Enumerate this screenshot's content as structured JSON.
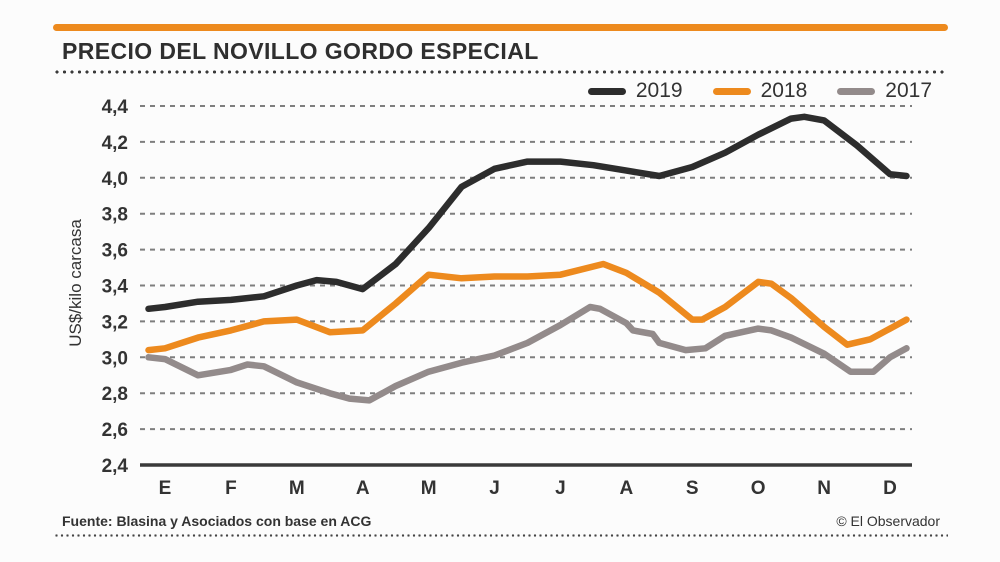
{
  "header": {
    "title": "PRECIO DEL NOVILLO GORDO ESPECIAL"
  },
  "footer": {
    "source": "Fuente: Blasina y Asociados con base en ACG",
    "credit": "© El Observador"
  },
  "colors": {
    "accent": "#ED8A1E",
    "background": "#FCFCFC",
    "title_text": "#2F2F2F"
  },
  "chart_data": {
    "type": "line",
    "title": "PRECIO DEL NOVILLO GORDO ESPECIAL",
    "ylabel": "US$/kilo carcasa",
    "xlabel": "",
    "ylim": [
      2.4,
      4.4
    ],
    "y_ticks": [
      2.4,
      2.6,
      2.8,
      3.0,
      3.2,
      3.4,
      3.6,
      3.8,
      4.0,
      4.2,
      4.4
    ],
    "y_tick_labels": [
      "2,4",
      "2,6",
      "2,8",
      "3,0",
      "3,2",
      "3,4",
      "3,6",
      "3,8",
      "4,0",
      "4,2",
      "4,4"
    ],
    "x_tick_labels": [
      "E",
      "F",
      "M",
      "A",
      "M",
      "J",
      "J",
      "A",
      "S",
      "O",
      "N",
      "D"
    ],
    "grid": "horizontal-dashed",
    "legend_position": "top-right",
    "grid_color": "#7E7E7E",
    "axis_color": "#3A3A3A",
    "text_color": "#333333",
    "series": [
      {
        "name": "2019",
        "color": "#2D2D2D",
        "points": [
          [
            -0.25,
            3.27
          ],
          [
            0,
            3.28
          ],
          [
            0.5,
            3.31
          ],
          [
            1,
            3.32
          ],
          [
            1.5,
            3.34
          ],
          [
            2,
            3.4
          ],
          [
            2.3,
            3.43
          ],
          [
            2.6,
            3.42
          ],
          [
            3,
            3.38
          ],
          [
            3.5,
            3.52
          ],
          [
            4,
            3.72
          ],
          [
            4.5,
            3.95
          ],
          [
            5,
            4.05
          ],
          [
            5.5,
            4.09
          ],
          [
            6,
            4.09
          ],
          [
            6.5,
            4.07
          ],
          [
            7,
            4.04
          ],
          [
            7.5,
            4.01
          ],
          [
            8,
            4.06
          ],
          [
            8.5,
            4.14
          ],
          [
            9,
            4.24
          ],
          [
            9.5,
            4.33
          ],
          [
            9.7,
            4.34
          ],
          [
            10,
            4.32
          ],
          [
            10.5,
            4.18
          ],
          [
            11,
            4.02
          ],
          [
            11.25,
            4.01
          ]
        ]
      },
      {
        "name": "2018",
        "color": "#ED8A1E",
        "points": [
          [
            -0.25,
            3.04
          ],
          [
            0,
            3.05
          ],
          [
            0.5,
            3.11
          ],
          [
            1,
            3.15
          ],
          [
            1.5,
            3.2
          ],
          [
            2,
            3.21
          ],
          [
            2.5,
            3.14
          ],
          [
            3,
            3.15
          ],
          [
            3.5,
            3.3
          ],
          [
            4,
            3.46
          ],
          [
            4.5,
            3.44
          ],
          [
            5,
            3.45
          ],
          [
            5.5,
            3.45
          ],
          [
            6,
            3.46
          ],
          [
            6.65,
            3.52
          ],
          [
            7,
            3.47
          ],
          [
            7.5,
            3.36
          ],
          [
            8,
            3.21
          ],
          [
            8.15,
            3.21
          ],
          [
            8.5,
            3.28
          ],
          [
            9,
            3.42
          ],
          [
            9.2,
            3.41
          ],
          [
            9.5,
            3.33
          ],
          [
            10,
            3.17
          ],
          [
            10.35,
            3.07
          ],
          [
            10.7,
            3.1
          ],
          [
            11,
            3.16
          ],
          [
            11.25,
            3.21
          ]
        ]
      },
      {
        "name": "2017",
        "color": "#938B8B",
        "points": [
          [
            -0.25,
            3.0
          ],
          [
            0,
            2.99
          ],
          [
            0.5,
            2.9
          ],
          [
            1,
            2.93
          ],
          [
            1.25,
            2.96
          ],
          [
            1.5,
            2.95
          ],
          [
            2,
            2.86
          ],
          [
            2.5,
            2.8
          ],
          [
            2.8,
            2.77
          ],
          [
            3.1,
            2.76
          ],
          [
            3.5,
            2.84
          ],
          [
            4,
            2.92
          ],
          [
            4.5,
            2.97
          ],
          [
            5,
            3.01
          ],
          [
            5.5,
            3.08
          ],
          [
            6,
            3.18
          ],
          [
            6.45,
            3.28
          ],
          [
            6.6,
            3.27
          ],
          [
            7,
            3.19
          ],
          [
            7.1,
            3.15
          ],
          [
            7.4,
            3.13
          ],
          [
            7.5,
            3.08
          ],
          [
            7.9,
            3.04
          ],
          [
            8.2,
            3.05
          ],
          [
            8.5,
            3.12
          ],
          [
            9,
            3.16
          ],
          [
            9.2,
            3.15
          ],
          [
            9.5,
            3.11
          ],
          [
            10,
            3.02
          ],
          [
            10.4,
            2.92
          ],
          [
            10.75,
            2.92
          ],
          [
            11,
            3.0
          ],
          [
            11.25,
            3.05
          ]
        ]
      }
    ]
  }
}
